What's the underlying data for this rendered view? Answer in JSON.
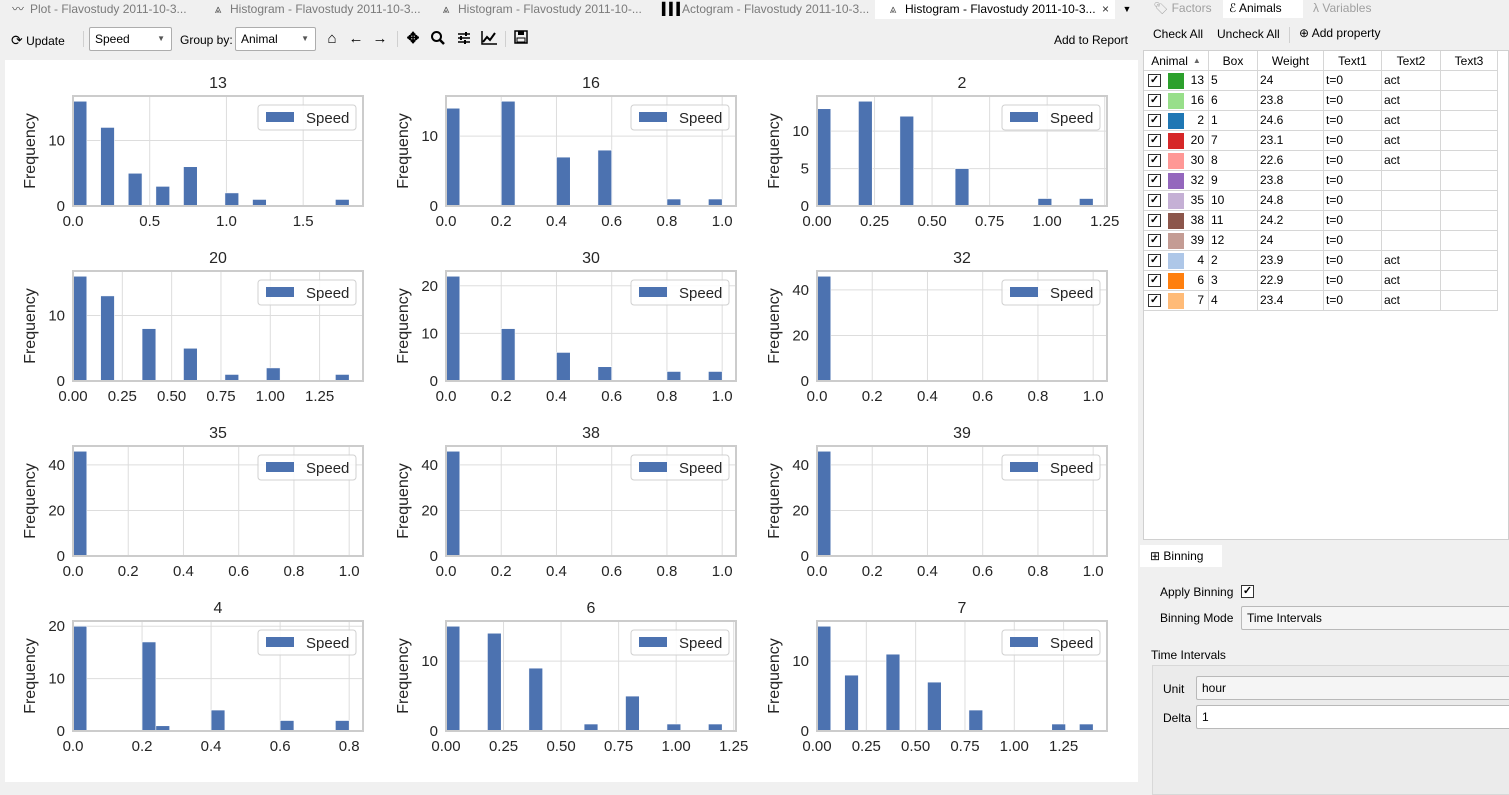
{
  "tabs": [
    {
      "label": "Plot - Flavostudy 2011-10-3...",
      "icon": "line-chart-icon",
      "active": false
    },
    {
      "label": "Histogram - Flavostudy 2011-10-3...",
      "icon": "histogram-icon",
      "active": false
    },
    {
      "label": "Histogram - Flavostudy 2011-10-...",
      "icon": "histogram-icon",
      "active": false
    },
    {
      "label": "Actogram - Flavostudy 2011-10-3...",
      "icon": "barcode-icon",
      "active": false
    },
    {
      "label": "Histogram - Flavostudy 2011-10-3...",
      "icon": "histogram-icon",
      "active": true,
      "close": "×"
    }
  ],
  "tab_menu": "▼",
  "toolbar": {
    "update_label": "Update",
    "variable_value": "Speed",
    "group_by_label": "Group by:",
    "group_by_value": "Animal",
    "icons": [
      "home-icon",
      "back-icon",
      "forward-icon",
      "pan-icon",
      "zoom-icon",
      "configure-subplots-icon",
      "edit-axis-icon",
      "save-icon"
    ],
    "add_to_report": "Add to Report"
  },
  "side_tabs": [
    {
      "label": "Factors",
      "active": false
    },
    {
      "label": "Animals",
      "active": true
    },
    {
      "label": "Variables",
      "active": false
    }
  ],
  "animals_toolbar": {
    "check_all": "Check All",
    "uncheck_all": "Uncheck All",
    "add_property": "Add property"
  },
  "animals_table": {
    "columns": [
      "Animal",
      "Box",
      "Weight",
      "Text1",
      "Text2",
      "Text3"
    ],
    "sort_indicator": "▲",
    "rows": [
      {
        "checked": true,
        "color": "#2ca02c",
        "animal": "13",
        "box": "5",
        "weight": "24",
        "text1": "t=0",
        "text2": "act",
        "text3": ""
      },
      {
        "checked": true,
        "color": "#98df8a",
        "animal": "16",
        "box": "6",
        "weight": "23.8",
        "text1": "t=0",
        "text2": "act",
        "text3": ""
      },
      {
        "checked": true,
        "color": "#1f77b4",
        "animal": "2",
        "box": "1",
        "weight": "24.6",
        "text1": "t=0",
        "text2": "act",
        "text3": ""
      },
      {
        "checked": true,
        "color": "#d62728",
        "animal": "20",
        "box": "7",
        "weight": "23.1",
        "text1": "t=0",
        "text2": "act",
        "text3": ""
      },
      {
        "checked": true,
        "color": "#ff9896",
        "animal": "30",
        "box": "8",
        "weight": "22.6",
        "text1": "t=0",
        "text2": "act",
        "text3": ""
      },
      {
        "checked": true,
        "color": "#9467bd",
        "animal": "32",
        "box": "9",
        "weight": "23.8",
        "text1": "t=0",
        "text2": "",
        "text3": ""
      },
      {
        "checked": true,
        "color": "#c5b0d5",
        "animal": "35",
        "box": "10",
        "weight": "24.8",
        "text1": "t=0",
        "text2": "",
        "text3": ""
      },
      {
        "checked": true,
        "color": "#8c564b",
        "animal": "38",
        "box": "11",
        "weight": "24.2",
        "text1": "t=0",
        "text2": "",
        "text3": ""
      },
      {
        "checked": true,
        "color": "#c49c94",
        "animal": "39",
        "box": "12",
        "weight": "24",
        "text1": "t=0",
        "text2": "",
        "text3": ""
      },
      {
        "checked": true,
        "color": "#aec7e8",
        "animal": "4",
        "box": "2",
        "weight": "23.9",
        "text1": "t=0",
        "text2": "act",
        "text3": ""
      },
      {
        "checked": true,
        "color": "#ff7f0e",
        "animal": "6",
        "box": "3",
        "weight": "22.9",
        "text1": "t=0",
        "text2": "act",
        "text3": ""
      },
      {
        "checked": true,
        "color": "#ffbb78",
        "animal": "7",
        "box": "4",
        "weight": "23.4",
        "text1": "t=0",
        "text2": "act",
        "text3": ""
      }
    ]
  },
  "binning": {
    "tab_label": "Binning",
    "apply_label": "Apply Binning",
    "apply_checked": true,
    "mode_label": "Binning Mode",
    "mode_value": "Time Intervals",
    "group_label": "Time Intervals",
    "unit_label": "Unit",
    "unit_value": "hour",
    "delta_label": "Delta",
    "delta_value": "1"
  },
  "colors": {
    "bar": "#4c72b0",
    "frame": "#cccccc",
    "grid": "#dddddd"
  },
  "chart_data": [
    {
      "type": "bar",
      "title": "13",
      "ylabel": "Frequency",
      "legend": "Speed",
      "legend_position": "upper right",
      "grid": true,
      "x_range": [
        0,
        1.8
      ],
      "counts": [
        16,
        0,
        12,
        0,
        5,
        0,
        3,
        0,
        6,
        0,
        0,
        2,
        0,
        1,
        0,
        0,
        0,
        0,
        0,
        1
      ],
      "xticks": [
        "0.0",
        "0.5",
        "1.0",
        "1.5"
      ],
      "yticks": [
        "0",
        "10"
      ]
    },
    {
      "type": "bar",
      "title": "16",
      "ylabel": "Frequency",
      "legend": "Speed",
      "legend_position": "upper right",
      "grid": true,
      "x_range": [
        0,
        1.0
      ],
      "counts": [
        14,
        0,
        0,
        0,
        15,
        0,
        0,
        0,
        7,
        0,
        0,
        8,
        0,
        0,
        0,
        0,
        1,
        0,
        0,
        1
      ],
      "xticks": [
        "0.0",
        "0.2",
        "0.4",
        "0.6",
        "0.8",
        "1.0"
      ],
      "yticks": [
        "0",
        "10"
      ]
    },
    {
      "type": "bar",
      "title": "2",
      "ylabel": "Frequency",
      "legend": "Speed",
      "legend_position": "upper right",
      "grid": true,
      "x_range": [
        0,
        1.2
      ],
      "counts": [
        13,
        0,
        0,
        14,
        0,
        0,
        12,
        0,
        0,
        0,
        5,
        0,
        0,
        0,
        0,
        0,
        1,
        0,
        0,
        1
      ],
      "xticks": [
        "0.00",
        "0.25",
        "0.50",
        "0.75",
        "1.00",
        "1.25"
      ],
      "yticks": [
        "0",
        "5",
        "10"
      ]
    },
    {
      "type": "bar",
      "title": "20",
      "ylabel": "Frequency",
      "legend": "Speed",
      "legend_position": "upper right",
      "grid": true,
      "x_range": [
        0,
        1.4
      ],
      "counts": [
        16,
        0,
        13,
        0,
        0,
        8,
        0,
        0,
        5,
        0,
        0,
        1,
        0,
        0,
        2,
        0,
        0,
        0,
        0,
        1
      ],
      "xticks": [
        "0.00",
        "0.25",
        "0.50",
        "0.75",
        "1.00",
        "1.25"
      ],
      "yticks": [
        "0",
        "10"
      ]
    },
    {
      "type": "bar",
      "title": "30",
      "ylabel": "Frequency",
      "legend": "Speed",
      "legend_position": "upper right",
      "grid": true,
      "x_range": [
        0,
        1.0
      ],
      "counts": [
        22,
        0,
        0,
        0,
        11,
        0,
        0,
        0,
        6,
        0,
        0,
        3,
        0,
        0,
        0,
        0,
        2,
        0,
        0,
        2
      ],
      "xticks": [
        "0.0",
        "0.2",
        "0.4",
        "0.6",
        "0.8",
        "1.0"
      ],
      "yticks": [
        "0",
        "10",
        "20"
      ]
    },
    {
      "type": "bar",
      "title": "32",
      "ylabel": "Frequency",
      "legend": "Speed",
      "legend_position": "upper right",
      "grid": true,
      "x_range": [
        0,
        1.0
      ],
      "counts": [
        46,
        0,
        0,
        0,
        0,
        0,
        0,
        0,
        0,
        0,
        0,
        0,
        0,
        0,
        0,
        0,
        0,
        0,
        0,
        0
      ],
      "xticks": [
        "0.0",
        "0.2",
        "0.4",
        "0.6",
        "0.8",
        "1.0"
      ],
      "yticks": [
        "0",
        "20",
        "40"
      ]
    },
    {
      "type": "bar",
      "title": "35",
      "ylabel": "Frequency",
      "legend": "Speed",
      "legend_position": "upper right",
      "grid": true,
      "x_range": [
        0,
        1.0
      ],
      "counts": [
        46,
        0,
        0,
        0,
        0,
        0,
        0,
        0,
        0,
        0,
        0,
        0,
        0,
        0,
        0,
        0,
        0,
        0,
        0,
        0
      ],
      "xticks": [
        "0.0",
        "0.2",
        "0.4",
        "0.6",
        "0.8",
        "1.0"
      ],
      "yticks": [
        "0",
        "20",
        "40"
      ]
    },
    {
      "type": "bar",
      "title": "38",
      "ylabel": "Frequency",
      "legend": "Speed",
      "legend_position": "upper right",
      "grid": true,
      "x_range": [
        0,
        1.0
      ],
      "counts": [
        46,
        0,
        0,
        0,
        0,
        0,
        0,
        0,
        0,
        0,
        0,
        0,
        0,
        0,
        0,
        0,
        0,
        0,
        0,
        0
      ],
      "xticks": [
        "0.0",
        "0.2",
        "0.4",
        "0.6",
        "0.8",
        "1.0"
      ],
      "yticks": [
        "0",
        "20",
        "40"
      ]
    },
    {
      "type": "bar",
      "title": "39",
      "ylabel": "Frequency",
      "legend": "Speed",
      "legend_position": "upper right",
      "grid": true,
      "x_range": [
        0,
        1.0
      ],
      "counts": [
        46,
        0,
        0,
        0,
        0,
        0,
        0,
        0,
        0,
        0,
        0,
        0,
        0,
        0,
        0,
        0,
        0,
        0,
        0,
        0
      ],
      "xticks": [
        "0.0",
        "0.2",
        "0.4",
        "0.6",
        "0.8",
        "1.0"
      ],
      "yticks": [
        "0",
        "20",
        "40"
      ]
    },
    {
      "type": "bar",
      "title": "4",
      "ylabel": "Frequency",
      "legend": "Speed",
      "legend_position": "upper right",
      "grid": true,
      "x_range": [
        0,
        0.8
      ],
      "counts": [
        20,
        0,
        0,
        0,
        0,
        17,
        1,
        0,
        0,
        0,
        4,
        0,
        0,
        0,
        0,
        2,
        0,
        0,
        0,
        2
      ],
      "xticks": [
        "0.0",
        "0.2",
        "0.4",
        "0.6",
        "0.8"
      ],
      "yticks": [
        "0",
        "10",
        "20"
      ]
    },
    {
      "type": "bar",
      "title": "6",
      "ylabel": "Frequency",
      "legend": "Speed",
      "legend_position": "upper right",
      "grid": true,
      "x_range": [
        0,
        1.2
      ],
      "counts": [
        15,
        0,
        0,
        14,
        0,
        0,
        9,
        0,
        0,
        0,
        1,
        0,
        0,
        5,
        0,
        0,
        1,
        0,
        0,
        1
      ],
      "xticks": [
        "0.00",
        "0.25",
        "0.50",
        "0.75",
        "1.00",
        "1.25"
      ],
      "yticks": [
        "0",
        "10"
      ]
    },
    {
      "type": "bar",
      "title": "7",
      "ylabel": "Frequency",
      "legend": "Speed",
      "legend_position": "upper right",
      "grid": true,
      "x_range": [
        0,
        1.4
      ],
      "counts": [
        15,
        0,
        8,
        0,
        0,
        11,
        0,
        0,
        7,
        0,
        0,
        3,
        0,
        0,
        0,
        0,
        0,
        1,
        0,
        1
      ],
      "xticks": [
        "0.00",
        "0.25",
        "0.50",
        "0.75",
        "1.00",
        "1.25"
      ],
      "yticks": [
        "0",
        "10"
      ]
    }
  ]
}
